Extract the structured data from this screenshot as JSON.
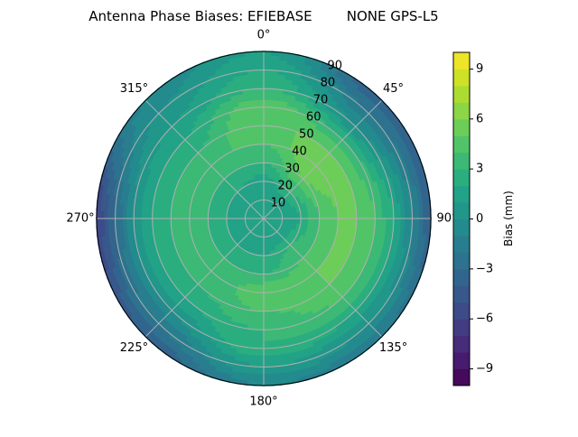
{
  "chart_data": {
    "type": "heatmap",
    "projection": "polar",
    "title": "Antenna Phase Biases: EFIEBASE        NONE GPS-L5",
    "colormap": "viridis",
    "colorbar": {
      "label": "Bias (mm)",
      "range": [
        -10,
        10
      ],
      "level_step": 1,
      "ticks": [
        -9,
        -6,
        -3,
        0,
        3,
        6,
        9
      ],
      "tick_labels": [
        "−9",
        "−6",
        "−3",
        "0",
        "3",
        "6",
        "9"
      ]
    },
    "angular_axis": {
      "direction": "clockwise",
      "zero": "north",
      "ticks": [
        0,
        45,
        90,
        135,
        180,
        225,
        270,
        315
      ],
      "tick_labels": [
        "0°",
        "45°",
        "90°",
        "135°",
        "180°",
        "225°",
        "270°",
        "315°"
      ]
    },
    "radial_axis": {
      "range": [
        0,
        90
      ],
      "ticks": [
        10,
        20,
        30,
        40,
        50,
        60,
        70,
        80,
        90
      ],
      "tick_labels": [
        "10",
        "20",
        "30",
        "40",
        "50",
        "60",
        "70",
        "80",
        "90"
      ]
    },
    "grid": true,
    "azimuth_deg": [
      0,
      45,
      90,
      135,
      180,
      225,
      270,
      315
    ],
    "zenith_deg": [
      0,
      10,
      20,
      30,
      40,
      50,
      60,
      70,
      80,
      90
    ],
    "values_mm": [
      [
        1,
        1,
        1.5,
        3,
        4,
        5,
        5,
        3,
        2,
        1
      ],
      [
        1,
        1,
        3,
        5,
        6,
        5,
        3,
        0,
        -2,
        -4
      ],
      [
        1,
        1,
        2,
        4,
        5,
        5,
        4,
        2,
        -1,
        -4
      ],
      [
        1,
        1,
        3,
        4,
        5,
        5,
        4,
        2,
        0,
        -2
      ],
      [
        1,
        1,
        2,
        3,
        5,
        4,
        3,
        3,
        1,
        -1
      ],
      [
        1,
        1,
        2,
        3,
        3,
        3,
        2,
        0,
        -2,
        -4
      ],
      [
        1,
        1,
        2,
        3,
        3,
        3,
        2,
        0,
        -3,
        -6
      ],
      [
        1,
        1,
        2,
        3,
        4,
        3,
        2,
        1,
        0,
        -1
      ]
    ]
  }
}
